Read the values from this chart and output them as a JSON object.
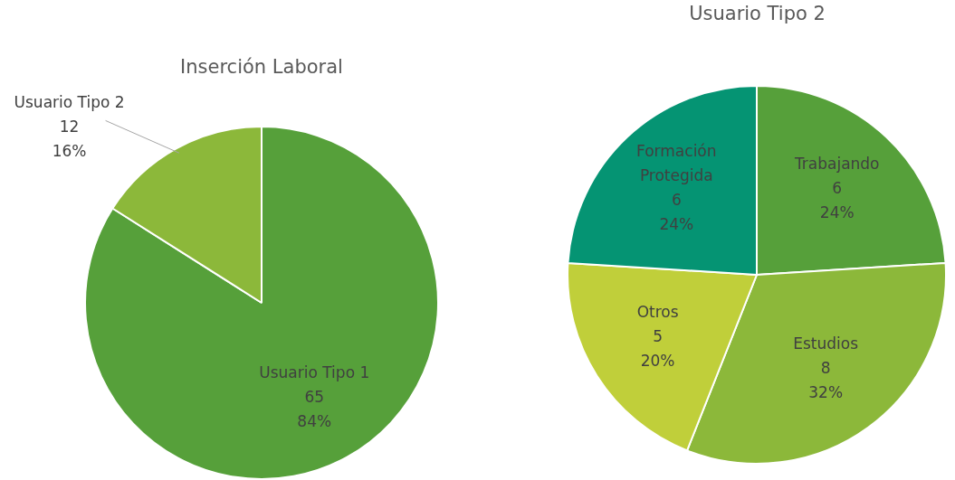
{
  "chart_data": [
    {
      "type": "pie",
      "title": "Inserción Laboral",
      "categories": [
        "Usuario Tipo 1",
        "Usuario Tipo 2"
      ],
      "values": [
        84,
        16
      ],
      "colors": [
        "#56a03a",
        "#8cb83a"
      ],
      "value_labels": [
        "65\n84%",
        "12\n16%"
      ],
      "legend": false
    },
    {
      "type": "pie",
      "title": "Usuario Tipo 2",
      "categories": [
        "Trabajando",
        "Estudios",
        "Otros",
        "Formación Protegida"
      ],
      "values": [
        24,
        32,
        20,
        24
      ],
      "colors": [
        "#56a03a",
        "#8cb83a",
        "#c0cf3a",
        "#059473"
      ],
      "value_labels": [
        "6\n24%",
        "8\n32%",
        "5\n20%",
        "6\n24%"
      ],
      "legend": false
    }
  ]
}
